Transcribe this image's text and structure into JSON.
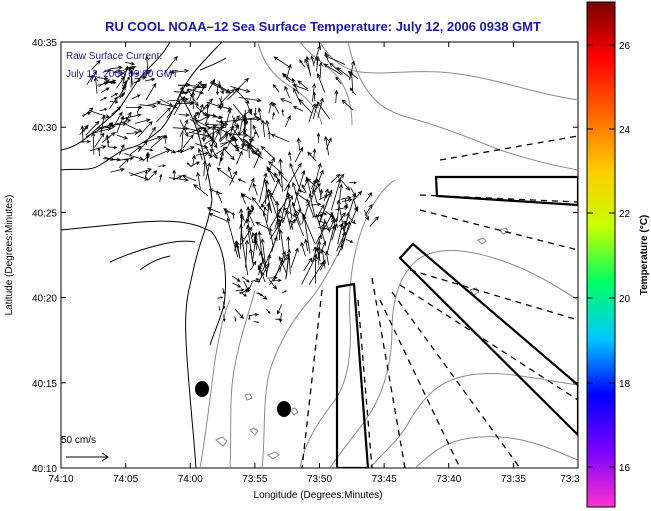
{
  "title": "RU COOL  NOAA–12  Sea Surface Temperature:  July 12, 2006 0938 GMT",
  "legend": {
    "line1": "Raw Surface Current:",
    "line2": "July 12, 2006 09:00 GMT"
  },
  "scale_label": "50 cm/s",
  "x_axis": {
    "label": "Longitude (Degrees:Minutes)",
    "ticks": [
      "74:10",
      "74:05",
      "74:00",
      "73:55",
      "73:50",
      "73:45",
      "73:40",
      "73:35",
      "73:3"
    ]
  },
  "y_axis": {
    "label": "Latitude (Degrees:Minutes)",
    "ticks": [
      "40:35",
      "40:30",
      "40:25",
      "40:20",
      "40:15",
      "40:10"
    ]
  },
  "colorbar": {
    "label": "Temperature (°C)",
    "ticks": [
      "26",
      "24",
      "22",
      "20",
      "18",
      "16"
    ],
    "colors": [
      "#ff33cc",
      "#7a00ff",
      "#0000ff",
      "#00c8ff",
      "#00ff64",
      "#c8ff00",
      "#ffcc00",
      "#ff6600",
      "#ff0000",
      "#7a0000"
    ]
  },
  "colors": {
    "title": "#1a1aa0",
    "coastline": "#000000",
    "contour": "#8a8a8a",
    "vectors": "#000000"
  }
}
